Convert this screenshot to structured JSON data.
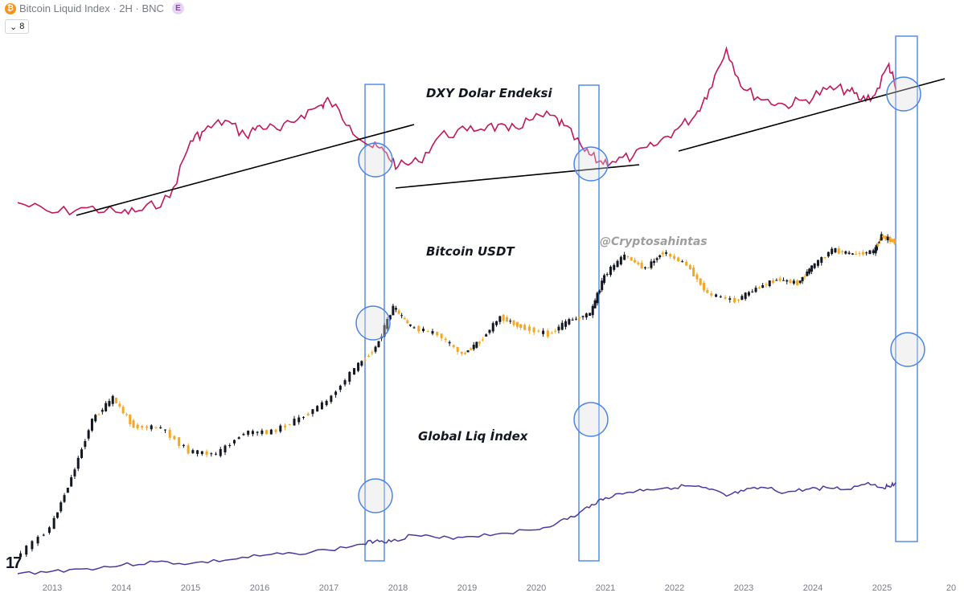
{
  "header": {
    "symbol_icon": "bitcoin-icon",
    "title": "Bitcoin Liquid Index · 2H · BNC",
    "badge": "E",
    "legend_count": "8"
  },
  "colors": {
    "dxy": "#c2185b",
    "liq": "#4a3aa0",
    "btc_up": "#131722",
    "btc_down": "#f5a623",
    "highlight_rect": "#4a86e8",
    "circle": "#4a86e8"
  },
  "chart_data": {
    "type": "line",
    "title": "",
    "xlabel": "",
    "ylabel": "",
    "x_ticks": [
      "2013",
      "2014",
      "2015",
      "2016",
      "2017",
      "2018",
      "2019",
      "2020",
      "2021",
      "2022",
      "2023",
      "2024",
      "2025",
      "20"
    ],
    "annotations": [
      "DXY Dolar Endeksi",
      "Bitcoin USDT",
      "Global Liq İndex"
    ],
    "watermark": "@Cryptosahintas",
    "series": [
      {
        "style": "line",
        "x": [
          2012.5,
          2013.0,
          2013.5,
          2014.0,
          2014.3,
          2014.7,
          2015.0,
          2015.2,
          2015.5,
          2015.8,
          2016.0,
          2016.3,
          2016.6,
          2016.9,
          2017.0,
          2017.3,
          2017.6,
          2017.8,
          2018.0,
          2018.3,
          2018.6,
          2019.0,
          2019.3,
          2019.6,
          2019.9,
          2020.2,
          2020.4,
          2020.7,
          2020.9,
          2021.1,
          2021.4,
          2021.7,
          2022.0,
          2022.3,
          2022.5,
          2022.75,
          2023.0,
          2023.3,
          2023.6,
          2023.9,
          2024.2,
          2024.5,
          2024.7,
          2024.9,
          2025.1,
          2025.2
        ],
        "y": [
          82,
          80,
          81,
          80,
          80.5,
          83,
          94,
          96,
          98,
          95,
          97,
          96,
          99,
          101,
          102,
          97,
          93,
          92,
          89,
          90,
          95,
          96,
          97,
          96,
          98,
          99,
          97,
          92,
          90,
          90,
          91,
          93,
          96,
          99,
          104,
          112,
          104,
          102,
          101,
          102,
          104,
          104,
          102,
          103,
          109,
          104
        ]
      },
      {
        "style": "candles",
        "x": [
          2012.5,
          2013.0,
          2013.3,
          2013.6,
          2013.9,
          2014.2,
          2014.6,
          2015.0,
          2015.4,
          2015.8,
          2016.2,
          2016.6,
          2017.0,
          2017.4,
          2017.7,
          2017.95,
          2018.2,
          2018.6,
          2018.95,
          2019.2,
          2019.5,
          2019.8,
          2020.2,
          2020.5,
          2020.8,
          2021.0,
          2021.3,
          2021.6,
          2021.85,
          2022.2,
          2022.5,
          2022.9,
          2023.2,
          2023.5,
          2023.8,
          2024.0,
          2024.3,
          2024.6,
          2024.9,
          2025.0,
          2025.2
        ],
        "y": [
          13,
          30,
          120,
          600,
          1100,
          500,
          480,
          250,
          230,
          420,
          430,
          620,
          1000,
          2500,
          4500,
          13800,
          8000,
          6500,
          3700,
          5300,
          10500,
          8000,
          6500,
          9500,
          11500,
          33000,
          58000,
          40000,
          64000,
          45000,
          20000,
          16500,
          23000,
          30000,
          27000,
          42000,
          68000,
          60000,
          65000,
          100000,
          85000
        ]
      },
      {
        "style": "line",
        "x": [
          2012.5,
          2013.0,
          2013.5,
          2014.0,
          2014.5,
          2015.0,
          2015.5,
          2016.0,
          2016.5,
          2017.0,
          2017.5,
          2017.7,
          2017.9,
          2018.2,
          2018.6,
          2019.0,
          2019.5,
          2020.0,
          2020.3,
          2020.6,
          2020.8,
          2021.0,
          2021.3,
          2021.6,
          2021.9,
          2022.2,
          2022.5,
          2022.75,
          2023.0,
          2023.3,
          2023.6,
          2023.9,
          2024.2,
          2024.5,
          2024.8,
          2025.0,
          2025.1,
          2025.2
        ],
        "y": [
          50,
          51.5,
          53,
          55,
          57,
          56,
          58,
          60.5,
          62,
          64,
          67.5,
          70,
          69,
          73,
          71,
          72,
          74,
          76,
          80,
          85,
          91,
          95,
          98,
          100,
          101,
          102,
          100,
          96,
          99,
          101,
          98,
          100,
          101,
          100,
          104,
          101,
          102,
          104
        ]
      }
    ]
  }
}
